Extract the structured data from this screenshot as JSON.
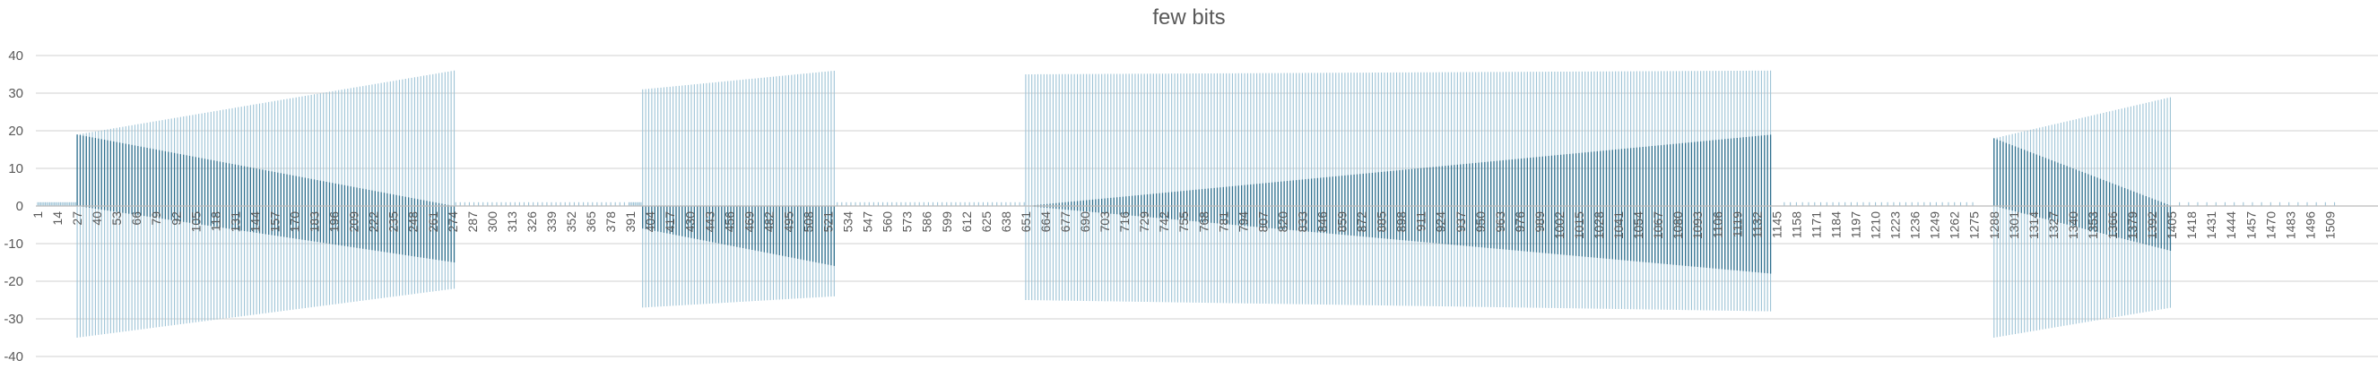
{
  "chart_data": {
    "type": "bar",
    "title": "few bits",
    "xlabel": "",
    "ylabel": "",
    "ylim": [
      -40,
      40
    ],
    "y_ticks": [
      40,
      30,
      20,
      10,
      0,
      -10,
      -20,
      -30,
      -40
    ],
    "x_range": [
      1,
      1517
    ],
    "x_tick_start": 1,
    "x_tick_step": 13,
    "grid": true,
    "legend": "none",
    "bar_color": "#2e6f8e",
    "bar_color_light": "#9dc3d6",
    "grid_color": "#d9d9d9",
    "series": [
      {
        "type": "constant",
        "x": [
          1,
          22
        ],
        "top": 1,
        "bottom": 0,
        "step": 1
      },
      {
        "type": "constant",
        "x": [
          23,
          26
        ],
        "top": 1,
        "bottom": 0,
        "step": 1
      },
      {
        "type": "ramp",
        "x": [
          27,
          275
        ],
        "top": [
          19,
          36
        ],
        "bottom": [
          -35,
          -22
        ],
        "inner_top": [
          19,
          0
        ],
        "inner_bottom": [
          0,
          -15
        ],
        "step": 2
      },
      {
        "type": "sparse",
        "x": [
          276,
          390
        ],
        "top": 1,
        "bottom": 0,
        "step": 3
      },
      {
        "type": "constant",
        "x": [
          391,
          398
        ],
        "top": 1,
        "bottom": 0,
        "step": 1
      },
      {
        "type": "ramp",
        "x": [
          399,
          526
        ],
        "top": [
          31,
          36
        ],
        "bottom": [
          -27,
          -24
        ],
        "inner_top": [
          0,
          0
        ],
        "inner_bottom": [
          -6,
          -16
        ],
        "step": 2
      },
      {
        "type": "sparse",
        "x": [
          527,
          650
        ],
        "top": 1,
        "bottom": 0,
        "step": 3
      },
      {
        "type": "ramp",
        "x": [
          651,
          1142
        ],
        "top": [
          35,
          36
        ],
        "bottom": [
          -25,
          -28
        ],
        "inner_top": [
          0,
          19
        ],
        "inner_bottom": [
          0,
          -18
        ],
        "step": 2
      },
      {
        "type": "sparse",
        "x": [
          1150,
          1275
        ],
        "top": 1,
        "bottom": 0,
        "step": 4
      },
      {
        "type": "ramp",
        "x": [
          1288,
          1405
        ],
        "top": [
          18,
          29
        ],
        "bottom": [
          -35,
          -27
        ],
        "inner_top": [
          18,
          0
        ],
        "inner_bottom": [
          0,
          -12
        ],
        "step": 2
      },
      {
        "type": "sparse",
        "x": [
          1410,
          1517
        ],
        "top": 1,
        "bottom": 0,
        "step": 6
      }
    ]
  }
}
